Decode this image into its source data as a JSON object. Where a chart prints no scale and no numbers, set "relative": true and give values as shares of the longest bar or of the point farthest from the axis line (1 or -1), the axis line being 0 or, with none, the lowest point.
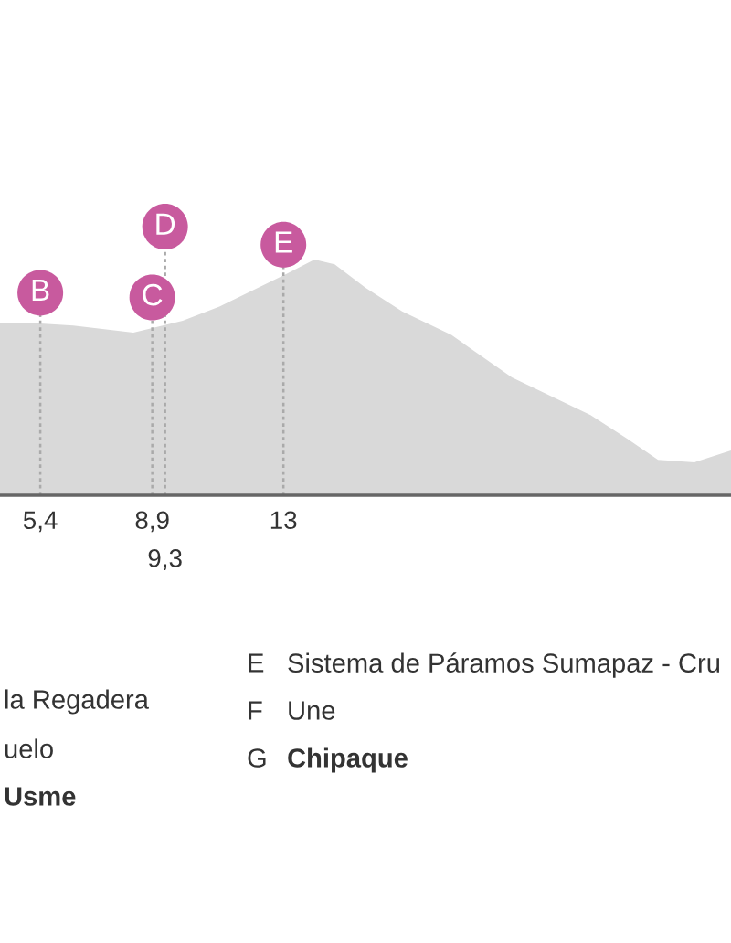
{
  "chart_data": {
    "type": "area",
    "relative": true,
    "color": "#d9d9d9",
    "grid": false,
    "legend": false,
    "x": [
      4.14,
      5.28,
      6.43,
      8.31,
      9.85,
      11.0,
      13.11,
      13.97,
      14.6,
      15.57,
      16.71,
      18.25,
      20.14,
      22.6,
      23.74,
      24.71,
      25.85,
      26.99
    ],
    "values": [
      0.73,
      0.73,
      0.72,
      0.69,
      0.74,
      0.8,
      0.94,
      1.0,
      0.98,
      0.88,
      0.78,
      0.68,
      0.5,
      0.34,
      0.24,
      0.15,
      0.14,
      0.19
    ],
    "xlim": [
      4.14,
      26.99
    ],
    "xticks": [
      {
        "value": 5.4,
        "label": "5,4"
      },
      {
        "value": 8.9,
        "label": "8,9"
      },
      {
        "value": 9.3,
        "label": null
      },
      {
        "value": 13,
        "label": "13"
      }
    ],
    "ref_lines": [
      {
        "axis": "x",
        "value": 5.4,
        "label": "B",
        "color": "#aaaaaa",
        "line_style": "dotted"
      },
      {
        "axis": "x",
        "value": 8.9,
        "label": "C",
        "color": "#aaaaaa",
        "line_style": "dotted"
      },
      {
        "axis": "x",
        "value": 9.3,
        "label": "D",
        "color": "#aaaaaa",
        "line_style": "dotted"
      },
      {
        "axis": "x",
        "value": 13,
        "label": "E",
        "color": "#aaaaaa",
        "line_style": "dotted"
      }
    ],
    "annotations": [
      "9,3",
      "la Regadera",
      "uelo",
      "Usme",
      "E",
      "Sistema de Páramos Sumapaz - Cru",
      "F",
      "Une",
      "G",
      "Chipaque"
    ]
  }
}
